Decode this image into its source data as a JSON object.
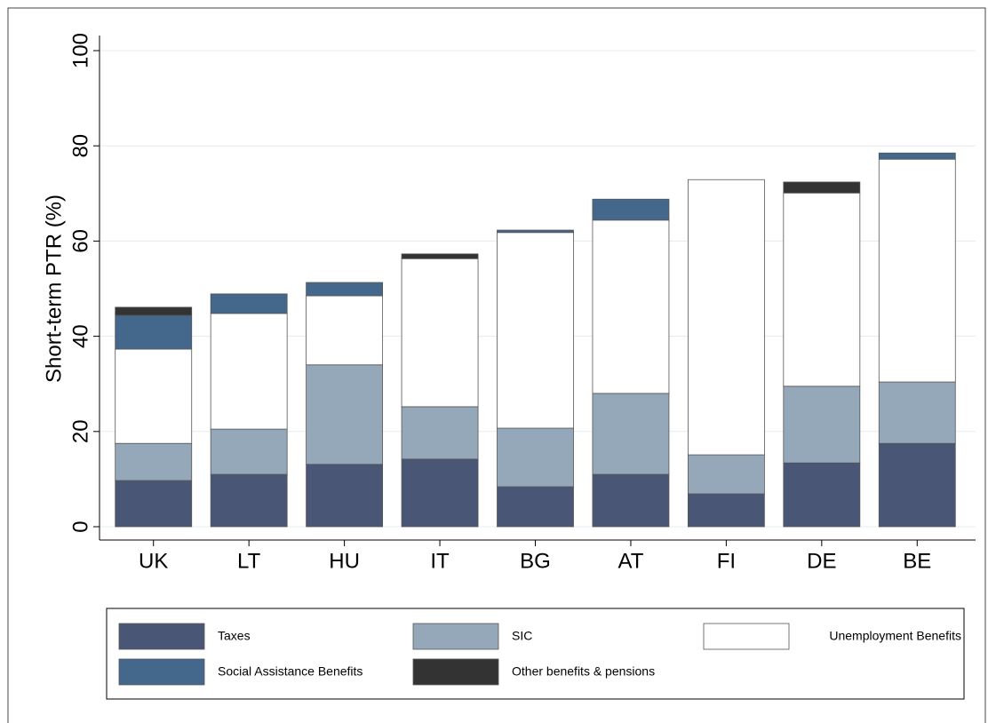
{
  "chart_data": {
    "type": "stacked-bar",
    "y_label": "Short-term PTR (%)",
    "categories": [
      "UK",
      "LT",
      "HU",
      "IT",
      "BG",
      "AT",
      "FI",
      "DE",
      "BE"
    ],
    "series": [
      {
        "name": "Taxes",
        "color": "#4a5675",
        "values": [
          9.7,
          11.0,
          13.1,
          14.2,
          8.4,
          11.0,
          6.9,
          13.4,
          17.5
        ]
      },
      {
        "name": "SIC",
        "color": "#95a8ba",
        "values": [
          7.8,
          9.5,
          20.9,
          11.0,
          12.3,
          17.0,
          8.2,
          16.1,
          12.9
        ]
      },
      {
        "name": "Unemployment Benefits",
        "color": "#ffffff",
        "values": [
          19.8,
          24.3,
          14.5,
          31.1,
          41.1,
          36.4,
          57.8,
          40.6,
          46.8
        ]
      },
      {
        "name": "Social Assistance Benefits",
        "color": "#44688b",
        "values": [
          7.1,
          4.1,
          2.8,
          0,
          0.5,
          4.4,
          0,
          0,
          1.3
        ]
      },
      {
        "name": "Other benefits & pensions",
        "color": "#333333",
        "values": [
          1.7,
          0,
          0,
          1.0,
          0,
          0,
          0,
          2.3,
          0
        ]
      }
    ],
    "ylim": [
      0,
      100
    ],
    "yticks": [
      0,
      20,
      40,
      60,
      80,
      100
    ],
    "grid": true,
    "legend": "bottom"
  }
}
